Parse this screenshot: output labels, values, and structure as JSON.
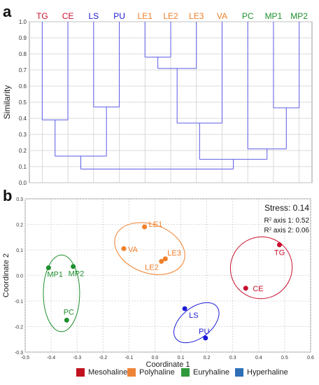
{
  "colors": {
    "mesohaline": "#c8102e",
    "polyhaline": "#f07f2a",
    "euryhaline": "#1e8f2e",
    "hyperhaline": "#1b1bd6",
    "legend_mesohaline": "#c0121f",
    "legend_polyhaline": "#ee8338",
    "legend_euryhaline": "#2f9a3b",
    "legend_hyperhaline": "#2e6fb7",
    "dendro_line": "#5b5be8",
    "grid": "#cfcfcf"
  },
  "panels": {
    "a": "a",
    "b": "b"
  },
  "chart_data": [
    {
      "type": "dendrogram",
      "ylabel": "Similarity",
      "ylim": [
        0,
        1.0
      ],
      "yticks": [
        "0.0",
        "0.1",
        "0.2",
        "0.3",
        "0.4",
        "0.5",
        "0.6",
        "0.7",
        "0.8",
        "0.9",
        "1.0"
      ],
      "grid": true,
      "leaves": [
        {
          "label": "TG",
          "group": "mesohaline"
        },
        {
          "label": "CE",
          "group": "mesohaline"
        },
        {
          "label": "LS",
          "group": "hyperhaline"
        },
        {
          "label": "PU",
          "group": "hyperhaline"
        },
        {
          "label": "LE1",
          "group": "polyhaline"
        },
        {
          "label": "LE2",
          "group": "polyhaline"
        },
        {
          "label": "LE3",
          "group": "polyhaline"
        },
        {
          "label": "VA",
          "group": "polyhaline"
        },
        {
          "label": "PC",
          "group": "euryhaline"
        },
        {
          "label": "MP1",
          "group": "euryhaline"
        },
        {
          "label": "MP2",
          "group": "euryhaline"
        }
      ],
      "merges": [
        {
          "a": "LE1",
          "b": "LE2",
          "similarity": 0.78
        },
        {
          "a": "m0",
          "b": "LE3",
          "similarity": 0.71
        },
        {
          "a": "MP1",
          "b": "MP2",
          "similarity": 0.465
        },
        {
          "a": "LS",
          "b": "PU",
          "similarity": 0.47
        },
        {
          "a": "TG",
          "b": "CE",
          "similarity": 0.39
        },
        {
          "a": "m1",
          "b": "VA",
          "similarity": 0.37
        },
        {
          "a": "PC",
          "b": "m2",
          "similarity": 0.21
        },
        {
          "a": "m4",
          "b": "m3",
          "similarity": 0.165
        },
        {
          "a": "m5",
          "b": "m6",
          "similarity": 0.145
        },
        {
          "a": "m7",
          "b": "m8",
          "similarity": 0.085
        }
      ]
    },
    {
      "type": "scatter",
      "xlabel": "Coordinate 1",
      "ylabel": "Coordinate 2",
      "xlim": [
        -0.5,
        0.6
      ],
      "ylim": [
        -0.3,
        0.3
      ],
      "xticks": [
        "-0.5",
        "-0.4",
        "-0.3",
        "-0.2",
        "-0.1",
        "0.0",
        "0.1",
        "0.2",
        "0.3",
        "0.4",
        "0.5",
        "0.6"
      ],
      "yticks": [
        "-0.3",
        "-0.2",
        "-0.1",
        "0.0",
        "0.1",
        "0.2",
        "0.3"
      ],
      "grid": true,
      "annotations": {
        "stress": "Stress: 0.14",
        "r2_axis1_prefix": "R",
        "r2_axis1_sup": "2",
        "r2_axis1_text": " axis 1: 0.52",
        "r2_axis2_prefix": "R",
        "r2_axis2_sup": "2",
        "r2_axis2_text": " axis 2: 0.06"
      },
      "points": [
        {
          "label": "TG",
          "group": "mesohaline",
          "x": 0.48,
          "y": 0.12
        },
        {
          "label": "CE",
          "group": "mesohaline",
          "x": 0.35,
          "y": -0.05
        },
        {
          "label": "LS",
          "group": "hyperhaline",
          "x": 0.115,
          "y": -0.13
        },
        {
          "label": "PU",
          "group": "hyperhaline",
          "x": 0.195,
          "y": -0.245
        },
        {
          "label": "LE1",
          "group": "polyhaline",
          "x": -0.04,
          "y": 0.19
        },
        {
          "label": "VA",
          "group": "polyhaline",
          "x": -0.12,
          "y": 0.105
        },
        {
          "label": "LE2",
          "group": "polyhaline",
          "x": 0.025,
          "y": 0.055
        },
        {
          "label": "LE3",
          "group": "polyhaline",
          "x": 0.04,
          "y": 0.065
        },
        {
          "label": "MP1",
          "group": "euryhaline",
          "x": -0.41,
          "y": 0.03
        },
        {
          "label": "MP2",
          "group": "euryhaline",
          "x": -0.315,
          "y": 0.035
        },
        {
          "label": "PC",
          "group": "euryhaline",
          "x": -0.34,
          "y": -0.175
        }
      ],
      "ellipses": [
        {
          "group": "mesohaline",
          "cx": 0.41,
          "cy": 0.03,
          "rx": 0.12,
          "ry": 0.12,
          "rotation": -45
        },
        {
          "group": "polyhaline",
          "cx": -0.02,
          "cy": 0.105,
          "rx": 0.14,
          "ry": 0.095,
          "rotation": 20
        },
        {
          "group": "euryhaline",
          "cx": -0.36,
          "cy": -0.07,
          "rx": 0.07,
          "ry": 0.15,
          "rotation": 0
        },
        {
          "group": "hyperhaline",
          "cx": 0.16,
          "cy": -0.185,
          "rx": 0.1,
          "ry": 0.06,
          "rotation": -38
        }
      ]
    }
  ],
  "legend": [
    {
      "label": "Mesohaline",
      "group": "mesohaline"
    },
    {
      "label": "Polyhaline",
      "group": "polyhaline"
    },
    {
      "label": "Euryhaline",
      "group": "euryhaline"
    },
    {
      "label": "Hyperhaline",
      "group": "hyperhaline"
    }
  ]
}
